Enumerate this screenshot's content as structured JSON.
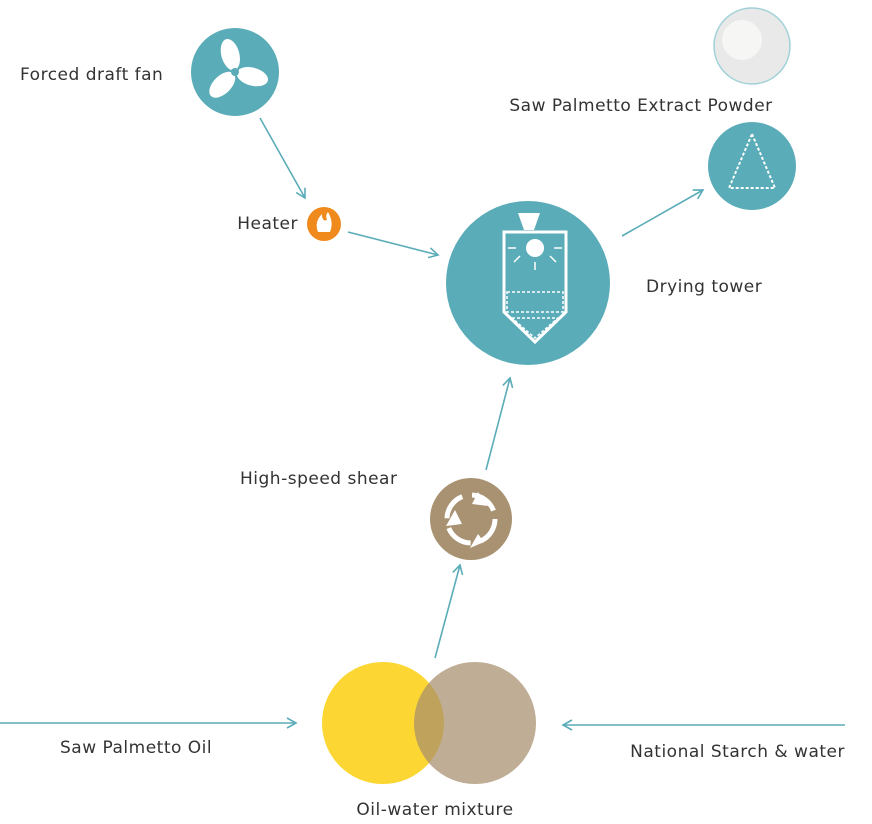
{
  "nodes": [
    {
      "label": "Forced draft fan"
    },
    {
      "label": "Heater"
    },
    {
      "label": "Drying tower"
    },
    {
      "label": "Saw Palmetto Extract Powder"
    },
    {
      "label": "High-speed shear"
    },
    {
      "label": "Saw Palmetto Oil"
    },
    {
      "label": "National Starch & water"
    },
    {
      "label": "Oil-water mixture"
    }
  ]
}
